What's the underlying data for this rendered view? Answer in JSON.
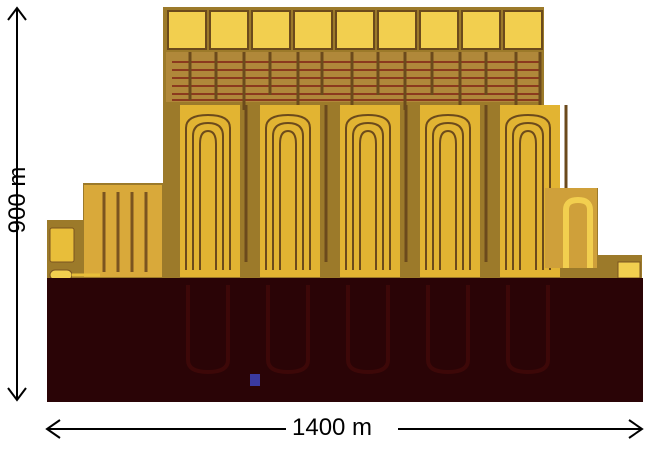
{
  "scale": {
    "vertical_label": "900 m",
    "horizontal_label": "1400 m"
  },
  "colors": {
    "gold_metal": "#e2b432",
    "gold_bright": "#f2cf4f",
    "substrate": "#9c7a2a",
    "trace_dark": "#6b4a1c",
    "red_trace": "#a0442a",
    "overlay_dark": "#2a0406",
    "overlay_trace": "#3d0808",
    "arrow": "#000000"
  },
  "bond_pads": {
    "count": 9
  },
  "meander_loops": {
    "count": 5
  },
  "side_fingers": {
    "count": 4
  }
}
